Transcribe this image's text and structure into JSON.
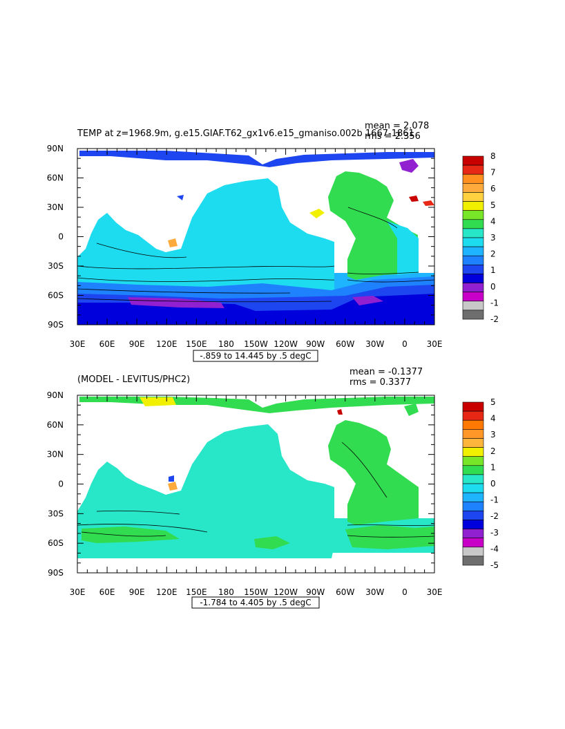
{
  "chart_data": [
    {
      "type": "heatmap",
      "title": "TEMP at z=1968.9m, g.e15.GIAF.T62_gx1v6.e15_gmaniso.002b 1667-1861",
      "stat_mean": "mean = 2.078",
      "stat_rms": "rms = 2.356",
      "range_label": "-.859 to 14.445 by .5 degC",
      "xticks": [
        "30E",
        "60E",
        "90E",
        "120E",
        "150E",
        "180",
        "150W",
        "120W",
        "90W",
        "60W",
        "30W",
        "0",
        "30E"
      ],
      "yticks": [
        "90N",
        "60N",
        "30N",
        "0",
        "30S",
        "60S",
        "90S"
      ],
      "colorbar": {
        "labels": [
          "8",
          "7",
          "6",
          "5",
          "4",
          "3",
          "2",
          "1",
          "0",
          "-1",
          "-2"
        ],
        "colors": [
          "#c80000",
          "#e62814",
          "#ff9020",
          "#ffaa3c",
          "#ffd040",
          "#f0f000",
          "#78e628",
          "#32dc50",
          "#28e6c8",
          "#1edcf0",
          "#1eb4ff",
          "#1e82ff",
          "#1e46f0",
          "#0000dc",
          "#9020d0",
          "#c800c8",
          "#c8c8c8",
          "#6e6e6e"
        ]
      }
    },
    {
      "type": "heatmap",
      "title": "(MODEL - LEVITUS/PHC2)",
      "stat_mean": "mean = -0.1377",
      "stat_rms": "rms = 0.3377",
      "range_label": "-1.784 to 4.405 by .5 degC",
      "xticks": [
        "30E",
        "60E",
        "90E",
        "120E",
        "150E",
        "180",
        "150W",
        "120W",
        "90W",
        "60W",
        "30W",
        "0",
        "30E"
      ],
      "yticks": [
        "90N",
        "60N",
        "30N",
        "0",
        "30S",
        "60S",
        "90S"
      ],
      "colorbar": {
        "labels": [
          "5",
          "4",
          "3",
          "2",
          "1",
          "0",
          "-1",
          "-2",
          "-3",
          "-4",
          "-5"
        ],
        "colors": [
          "#c80000",
          "#e62814",
          "#ff7800",
          "#ff9628",
          "#ffb43c",
          "#f0f000",
          "#78e628",
          "#32dc50",
          "#28e6c8",
          "#1edcf0",
          "#1eb4ff",
          "#1e82ff",
          "#1e46f0",
          "#0000dc",
          "#9020d0",
          "#c800c8",
          "#c8c8c8",
          "#6e6e6e"
        ]
      }
    }
  ]
}
